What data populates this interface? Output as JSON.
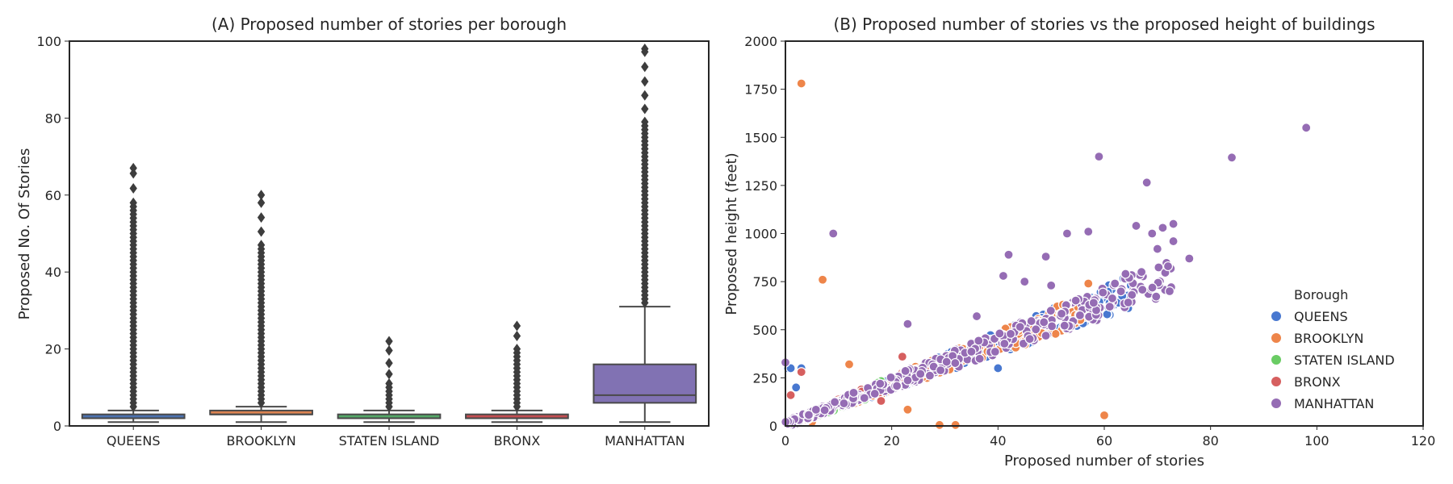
{
  "chart_data": [
    {
      "type": "box",
      "title": "(A) Proposed number of stories per borough",
      "xlabel": "",
      "ylabel": "Proposed No. Of Stories",
      "ylim": [
        0,
        100
      ],
      "yticks": [
        0,
        20,
        40,
        60,
        80,
        100
      ],
      "grid": false,
      "categories": [
        "QUEENS",
        "BROOKLYN",
        "STATEN ISLAND",
        "BRONX",
        "MANHATTAN"
      ],
      "colors": [
        "#4c72b0",
        "#dd8452",
        "#55a868",
        "#c44e52",
        "#8172b3"
      ],
      "boxes": [
        {
          "category": "QUEENS",
          "whisker_low": 1,
          "q1": 2,
          "median": 2,
          "q3": 3,
          "whisker_high": 4,
          "outliers_max": 67,
          "outlier_spread": 0.85
        },
        {
          "category": "BROOKLYN",
          "whisker_low": 1,
          "q1": 3,
          "median": 3,
          "q3": 4,
          "whisker_high": 5,
          "outliers_max": 60,
          "outlier_spread": 0.75
        },
        {
          "category": "STATEN ISLAND",
          "whisker_low": 1,
          "q1": 2,
          "median": 2,
          "q3": 3,
          "whisker_high": 4,
          "outliers_max": 22,
          "outlier_spread": 0.35
        },
        {
          "category": "BRONX",
          "whisker_low": 1,
          "q1": 2,
          "median": 2,
          "q3": 3,
          "whisker_high": 4,
          "outliers_max": 26,
          "outlier_spread": 0.7
        },
        {
          "category": "MANHATTAN",
          "whisker_low": 1,
          "q1": 6,
          "median": 8,
          "q3": 16,
          "whisker_high": 31,
          "outliers_max": 98,
          "outlier_spread": 0.7
        }
      ]
    },
    {
      "type": "scatter",
      "title": "(B) Proposed number of stories vs the proposed height of buildings",
      "xlabel": "Proposed number of stories",
      "ylabel": "Proposed height (feet)",
      "xlim": [
        0,
        120
      ],
      "ylim": [
        0,
        2000
      ],
      "xticks": [
        0,
        20,
        40,
        60,
        80,
        100,
        120
      ],
      "yticks": [
        0,
        250,
        500,
        750,
        1000,
        1250,
        1500,
        1750,
        2000
      ],
      "grid": false,
      "legend_title": "Borough",
      "legend_position": "lower-right",
      "series": [
        {
          "name": "QUEENS",
          "color": "#4878d0",
          "trend_max": 65,
          "points": [
            [
              0.5,
              300
            ],
            [
              1,
              300
            ],
            [
              2,
              200
            ],
            [
              3,
              300
            ],
            [
              40,
              300
            ],
            [
              65,
              730
            ],
            [
              66,
              720
            ],
            [
              61,
              640
            ],
            [
              45,
              450
            ],
            [
              50,
              480
            ]
          ]
        },
        {
          "name": "BROOKLYN",
          "color": "#ee854a",
          "trend_max": 57,
          "points": [
            [
              3,
              1780
            ],
            [
              7,
              760
            ],
            [
              60,
              55
            ],
            [
              23,
              85
            ],
            [
              29,
              5
            ],
            [
              32,
              5
            ],
            [
              57,
              740
            ],
            [
              5,
              20
            ],
            [
              12,
              320
            ]
          ]
        },
        {
          "name": "STATEN ISLAND",
          "color": "#6acc64",
          "trend_max": 18,
          "points": [
            [
              2,
              30
            ],
            [
              3,
              40
            ]
          ]
        },
        {
          "name": "BRONX",
          "color": "#d65f5f",
          "trend_max": 28,
          "points": [
            [
              3,
              280
            ],
            [
              1,
              160
            ],
            [
              18,
              130
            ],
            [
              22,
              360
            ]
          ]
        },
        {
          "name": "MANHATTAN",
          "color": "#956cb4",
          "trend_max": 73,
          "points": [
            [
              0,
              330
            ],
            [
              9,
              1000
            ],
            [
              59,
              1400
            ],
            [
              68,
              1265
            ],
            [
              84,
              1395
            ],
            [
              98,
              1550
            ],
            [
              42,
              890
            ],
            [
              49,
              880
            ],
            [
              53,
              1000
            ],
            [
              57,
              1010
            ],
            [
              66,
              1040
            ],
            [
              71,
              1030
            ],
            [
              73,
              1050
            ],
            [
              76,
              870
            ],
            [
              72,
              830
            ],
            [
              69,
              1000
            ],
            [
              73,
              960
            ],
            [
              70,
              920
            ],
            [
              41,
              780
            ],
            [
              45,
              750
            ],
            [
              50,
              730
            ],
            [
              23,
              530
            ],
            [
              36,
              570
            ],
            [
              58,
              640
            ],
            [
              64,
              790
            ],
            [
              62,
              740
            ],
            [
              67,
              800
            ]
          ]
        }
      ]
    }
  ]
}
